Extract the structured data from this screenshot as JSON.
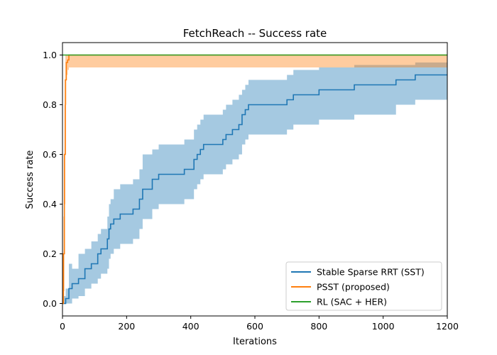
{
  "chart_data": {
    "type": "line",
    "title": "FetchReach -- Success rate",
    "xlabel": "Iterations",
    "ylabel": "Success rate",
    "xlim": [
      0,
      1200
    ],
    "ylim": [
      -0.05,
      1.05
    ],
    "xticks": [
      0,
      200,
      400,
      600,
      800,
      1000,
      1200
    ],
    "yticks": [
      0.0,
      0.2,
      0.4,
      0.6,
      0.8,
      1.0
    ],
    "xtick_labels": [
      "0",
      "200",
      "400",
      "600",
      "800",
      "1000",
      "1200"
    ],
    "ytick_labels": [
      "0.0",
      "0.2",
      "0.4",
      "0.6",
      "0.8",
      "1.0"
    ],
    "grid": false,
    "legend_position": "lower-right",
    "series": [
      {
        "name": "Stable Sparse RRT (SST)",
        "color": "#1f77b4",
        "step": true,
        "x": [
          0,
          10,
          20,
          30,
          50,
          70,
          90,
          110,
          120,
          140,
          145,
          150,
          160,
          180,
          220,
          240,
          250,
          280,
          300,
          380,
          410,
          420,
          430,
          440,
          450,
          500,
          510,
          530,
          550,
          560,
          570,
          580,
          700,
          720,
          800,
          910,
          1040,
          1100,
          1200
        ],
        "y": [
          0.0,
          0.02,
          0.06,
          0.08,
          0.1,
          0.14,
          0.16,
          0.2,
          0.22,
          0.26,
          0.3,
          0.32,
          0.34,
          0.36,
          0.38,
          0.42,
          0.46,
          0.5,
          0.52,
          0.54,
          0.58,
          0.6,
          0.62,
          0.64,
          0.64,
          0.66,
          0.68,
          0.7,
          0.72,
          0.76,
          0.78,
          0.8,
          0.82,
          0.84,
          0.86,
          0.88,
          0.9,
          0.92,
          0.92
        ],
        "lower": [
          0.0,
          0.0,
          0.0,
          0.02,
          0.03,
          0.06,
          0.08,
          0.1,
          0.12,
          0.14,
          0.18,
          0.2,
          0.22,
          0.24,
          0.26,
          0.3,
          0.34,
          0.38,
          0.4,
          0.42,
          0.46,
          0.48,
          0.5,
          0.52,
          0.52,
          0.54,
          0.56,
          0.58,
          0.6,
          0.64,
          0.66,
          0.68,
          0.7,
          0.72,
          0.74,
          0.76,
          0.8,
          0.82,
          0.82
        ],
        "upper": [
          0.03,
          0.06,
          0.16,
          0.14,
          0.2,
          0.22,
          0.25,
          0.28,
          0.3,
          0.35,
          0.4,
          0.42,
          0.46,
          0.48,
          0.5,
          0.54,
          0.6,
          0.62,
          0.64,
          0.66,
          0.7,
          0.72,
          0.74,
          0.76,
          0.76,
          0.78,
          0.8,
          0.82,
          0.84,
          0.86,
          0.88,
          0.9,
          0.92,
          0.94,
          0.95,
          0.96,
          0.96,
          0.97,
          0.97
        ]
      },
      {
        "name": "PSST (proposed)",
        "color": "#ff7f0e",
        "step": true,
        "x": [
          0,
          3,
          6,
          9,
          12,
          16,
          20,
          1200
        ],
        "y": [
          0.0,
          0.2,
          0.6,
          0.9,
          0.97,
          0.98,
          1.0,
          1.0
        ],
        "lower": [
          0.0,
          0.05,
          0.4,
          0.8,
          0.92,
          0.94,
          0.95,
          0.95
        ],
        "upper": [
          0.02,
          0.35,
          0.8,
          1.0,
          1.0,
          1.0,
          1.0,
          1.0
        ]
      },
      {
        "name": "RL (SAC + HER)",
        "color": "#2ca02c",
        "step": true,
        "x": [
          0,
          1200
        ],
        "y": [
          1.0,
          1.0
        ],
        "lower": [
          1.0,
          1.0
        ],
        "upper": [
          1.0,
          1.0
        ]
      }
    ]
  }
}
